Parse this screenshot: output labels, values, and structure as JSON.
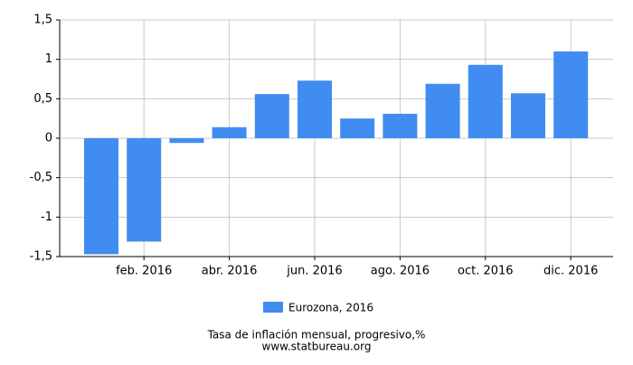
{
  "chart_data": {
    "type": "bar",
    "title": "Tasa de inflación mensual, progresivo,%",
    "source": "www.statbureau.org",
    "categories": [
      null,
      "feb. 2016",
      null,
      "abr. 2016",
      null,
      "jun. 2016",
      null,
      "ago. 2016",
      null,
      "oct. 2016",
      null,
      "dic. 2016"
    ],
    "series": [
      {
        "name": "Eurozona, 2016",
        "color": "#418cf0",
        "values": [
          -1.47,
          -1.31,
          -0.06,
          0.14,
          0.56,
          0.73,
          0.25,
          0.31,
          0.69,
          0.93,
          0.57,
          1.1
        ]
      }
    ],
    "ylim": [
      -1.5,
      1.5
    ],
    "yticks": [
      {
        "value": -1.5,
        "label": "-1,5"
      },
      -1,
      {
        "value": -0.5,
        "label": "-0,5"
      },
      0,
      {
        "value": 0.5,
        "label": "0,5"
      },
      1,
      {
        "value": 1.5,
        "label": "1,5"
      }
    ],
    "grid": true
  }
}
